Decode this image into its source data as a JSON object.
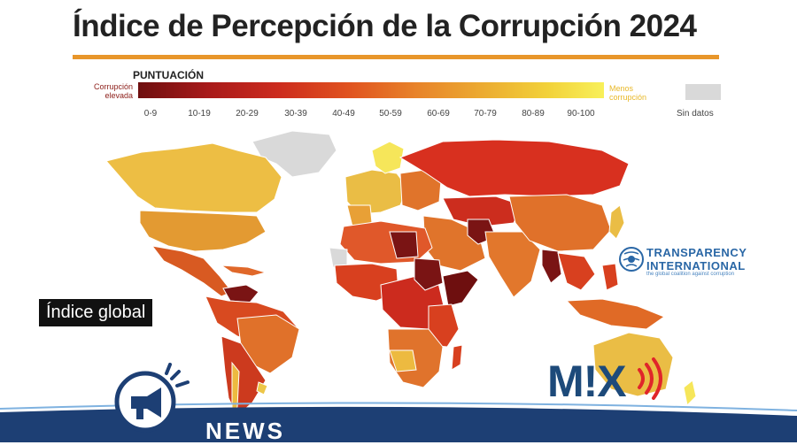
{
  "title": "Índice de Percepción de la Corrupción 2024",
  "legend": {
    "heading": "PUNTUACIÓN",
    "low_label_1": "Corrupción",
    "low_label_2": "elevada",
    "high_label_1": "Menos",
    "high_label_2": "corrupción",
    "ranges": [
      "0-9",
      "10-19",
      "20-29",
      "30-39",
      "40-49",
      "50-59",
      "60-69",
      "70-79",
      "80-89",
      "90-100"
    ],
    "no_data": "Sin datos"
  },
  "badge": "Índice global",
  "logo": {
    "line1": "TRANSPARENCY",
    "line2": "INTERNATIONAL",
    "line3": "the global coalition against corruption"
  },
  "brand": "M!X",
  "news": "NEWS",
  "colors": {
    "title_rule": "#e8962a",
    "logo_blue": "#2a67a6",
    "mix_blue": "#1d4a7a",
    "mix_red": "#e0252a",
    "news_band": "#1d3f74"
  }
}
